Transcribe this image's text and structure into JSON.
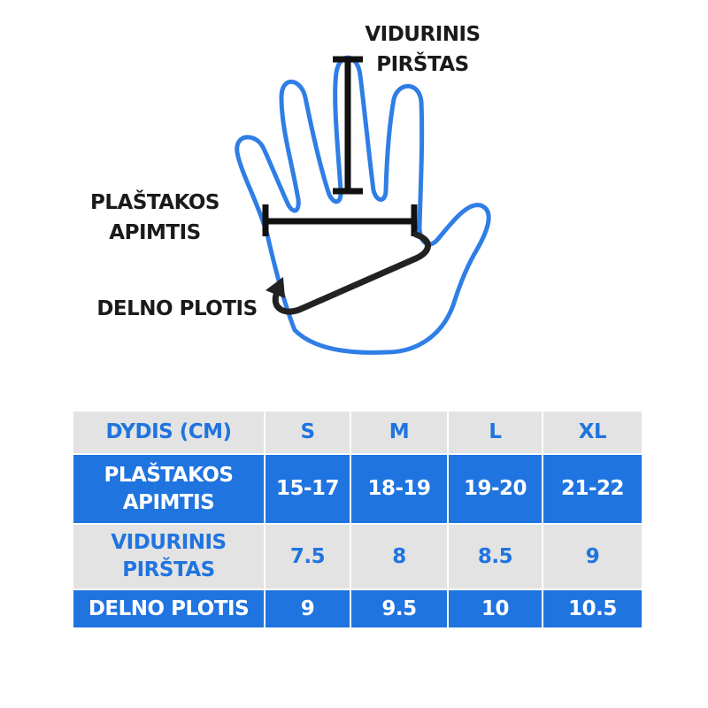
{
  "labels": {
    "middle_finger": [
      "VIDURINIS",
      "PIRŠTAS"
    ],
    "hand_girth": [
      "PLAŠTAKOS",
      "APIMTIS"
    ],
    "palm_width": "DELNO PLOTIS"
  },
  "colors": {
    "accent": "#1f74e0",
    "row_gray": "#e3e3e3",
    "marker": "#111111"
  },
  "table": {
    "header": [
      "DYDIS (CM)",
      "S",
      "M",
      "L",
      "XL"
    ],
    "rows": [
      {
        "label": [
          "PLAŠTAKOS",
          "APIMTIS"
        ],
        "values": [
          "15-17",
          "18-19",
          "19-20",
          "21-22"
        ]
      },
      {
        "label": [
          "VIDURINIS",
          "PIRŠTAS"
        ],
        "values": [
          "7.5",
          "8",
          "8.5",
          "9"
        ]
      },
      {
        "label": [
          "DELNO PLOTIS"
        ],
        "values": [
          "9",
          "9.5",
          "10",
          "10.5"
        ]
      }
    ]
  }
}
